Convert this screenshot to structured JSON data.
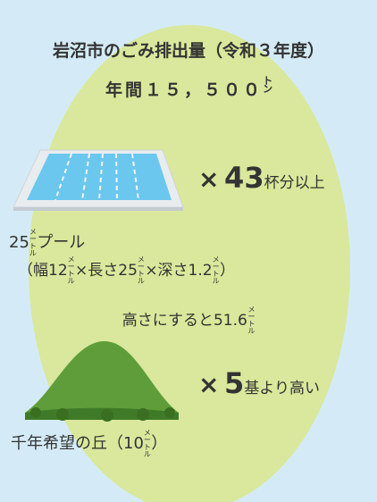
{
  "title": "岩沼市のごみ排出量（令和３年度）",
  "annual": {
    "amount": "年間１５，５００",
    "unit": "トン"
  },
  "pool": {
    "times": "×",
    "count": "43",
    "suffix": "杯分以上",
    "name": [
      "25",
      "メートル",
      "プール"
    ],
    "dims": [
      "（幅12",
      "メートル",
      "×長さ25",
      "メートル",
      "×深さ1.2",
      "メートル",
      "）"
    ]
  },
  "height": {
    "text": "高さにすると51.6",
    "unit": "メートル"
  },
  "hill": {
    "times": "×",
    "count": "5",
    "suffix": "基より高い",
    "name": [
      "千年希望の丘（10",
      "メートル",
      "）"
    ]
  }
}
